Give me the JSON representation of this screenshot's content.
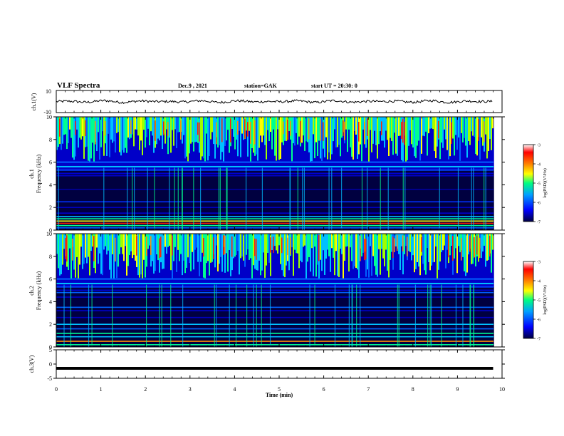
{
  "header": {
    "title": "VLF Spectra",
    "date": "Dec.9 , 2021",
    "station": "station=GAK",
    "start": "start UT = 20:30: 0"
  },
  "labels": {
    "ch1_wave": "ch.1(V)",
    "ch1_spec": "ch.1",
    "ch2_spec": "ch.2",
    "freq": "Frequency (kHz)",
    "ch3_wave": "ch.3(V)",
    "xlabel": "Time (min)",
    "colorbar_label": "log(PSD)(V²/Hz)"
  },
  "colors": {
    "colormap": [
      "#000050",
      "#0000ff",
      "#00a0ff",
      "#00ff80",
      "#ffff00",
      "#ff8000",
      "#ff0000",
      "#ffffff"
    ]
  },
  "chart_data": [
    {
      "type": "line",
      "name": "ch1-waveform",
      "ylabel": "ch.1(V)",
      "ylim": [
        -10,
        10
      ],
      "yticks": [
        10,
        -10
      ],
      "xlim": [
        0,
        10
      ],
      "description_values": "noise around 0 V",
      "x": [
        0,
        1,
        2,
        3,
        4,
        5,
        6,
        7,
        8,
        9,
        9.8
      ],
      "y": [
        0,
        0.5,
        0,
        0.3,
        -0.2,
        0.2,
        0,
        0.4,
        0,
        0.2,
        0
      ]
    },
    {
      "type": "heatmap",
      "name": "ch1-spectrogram",
      "ylabel": "Frequency (kHz)",
      "ylim": [
        0,
        10
      ],
      "yticks": [
        0,
        2,
        4,
        6,
        8,
        10
      ],
      "xlim": [
        0,
        10
      ],
      "colorbar": {
        "range": [
          -7,
          -3
        ],
        "ticks": [
          -3,
          -4,
          -5,
          -6,
          -7
        ]
      }
    },
    {
      "type": "heatmap",
      "name": "ch2-spectrogram",
      "ylabel": "Frequency (kHz)",
      "ylim": [
        0,
        10
      ],
      "yticks": [
        0,
        2,
        4,
        6,
        8,
        10
      ],
      "xlim": [
        0,
        10
      ],
      "colorbar": {
        "range": [
          -7,
          -3
        ],
        "ticks": [
          -3,
          -4,
          -5,
          -6,
          -7
        ]
      }
    },
    {
      "type": "line",
      "name": "ch3-waveform",
      "ylabel": "ch.3(V)",
      "ylim": [
        -5,
        5
      ],
      "yticks": [
        5,
        0,
        -5
      ],
      "xlim": [
        0,
        10
      ],
      "xlabel": "Time (min)",
      "xticks": [
        0,
        1,
        2,
        3,
        4,
        5,
        6,
        7,
        8,
        9,
        10
      ],
      "x": [
        0,
        9.8
      ],
      "y": [
        -1.5,
        -1.5
      ]
    }
  ]
}
